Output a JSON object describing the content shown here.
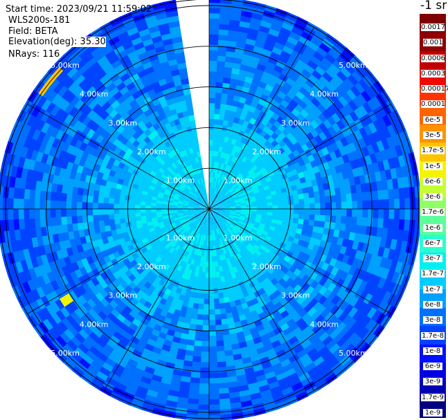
{
  "info": {
    "start_time": "Start time: 2023/09/21 11:59:02",
    "instrument": "WLS200s-181",
    "field": "Field: BETA",
    "elevation": "Elevation(deg): 35.30",
    "nrays": "NRays: 116"
  },
  "colorbar": {
    "title": "-1 sr",
    "colors": [
      "#000080",
      "#0000b4",
      "#0000e0",
      "#0010ff",
      "#0044ff",
      "#0070ff",
      "#00a0ff",
      "#00ccff",
      "#00f0f0",
      "#2affcd",
      "#5cff9a",
      "#90ff66",
      "#c4ff33",
      "#f4f400",
      "#ffc400",
      "#ff9400",
      "#ff6400",
      "#ff3400",
      "#f00800",
      "#c00000",
      "#900000",
      "#800000"
    ],
    "labels": [
      "1e-9",
      "1.7e-9",
      "3e-9",
      "6e-9",
      "1e-8",
      "1.7e-8",
      "3e-8",
      "6e-8",
      "1e-7",
      "1.7e-7",
      "3e-7",
      "6e-7",
      "1e-6",
      "1.7e-6",
      "3e-6",
      "6e-6",
      "1e-5",
      "1.7e-5",
      "3e-5",
      "6e-5",
      "0.0001",
      "0.00017",
      "0.0003",
      "0.0006",
      "0.001",
      "0.0017"
    ]
  },
  "chart_data": {
    "type": "heatmap",
    "projection": "polar-ppi",
    "variable": "BETA",
    "units": "sr-1",
    "color_scale": "log",
    "vmin": 1e-09,
    "vmax": 0.0017,
    "range_rings_km": [
      1,
      2,
      3,
      4,
      5
    ],
    "range_ring_labels": [
      "1.00km",
      "2.00km",
      "3.00km",
      "4.00km",
      "5.00km"
    ],
    "max_range_km": 5.2,
    "radial_lines_deg": [
      0,
      30,
      60,
      90,
      120,
      150,
      180,
      210,
      240,
      270,
      300,
      330
    ],
    "missing_sector_azimuth_deg": [
      352,
      360
    ],
    "rays": 116,
    "range_bins": 40,
    "range_profile": [
      {
        "range_km": 0.25,
        "beta": 1.2e-07
      },
      {
        "range_km": 0.75,
        "beta": 1.8e-07
      },
      {
        "range_km": 1.25,
        "beta": 1.7e-07
      },
      {
        "range_km": 1.75,
        "beta": 1.5e-07
      },
      {
        "range_km": 2.25,
        "beta": 9e-08
      },
      {
        "range_km": 2.75,
        "beta": 6e-08
      },
      {
        "range_km": 3.25,
        "beta": 5e-08
      },
      {
        "range_km": 3.75,
        "beta": 4e-08
      },
      {
        "range_km": 4.25,
        "beta": 4e-08
      },
      {
        "range_km": 4.75,
        "beta": 3e-08
      },
      {
        "range_km": 5.15,
        "beta": 2e-08
      }
    ],
    "features": [
      {
        "azimuth_deg": [
          305,
          312
        ],
        "range_km": [
          4.9,
          5.1
        ],
        "beta": 1.7e-05
      },
      {
        "azimuth_deg": [
          237,
          239
        ],
        "range_km": [
          4.1,
          4.3
        ],
        "beta": 6e-06
      }
    ]
  }
}
